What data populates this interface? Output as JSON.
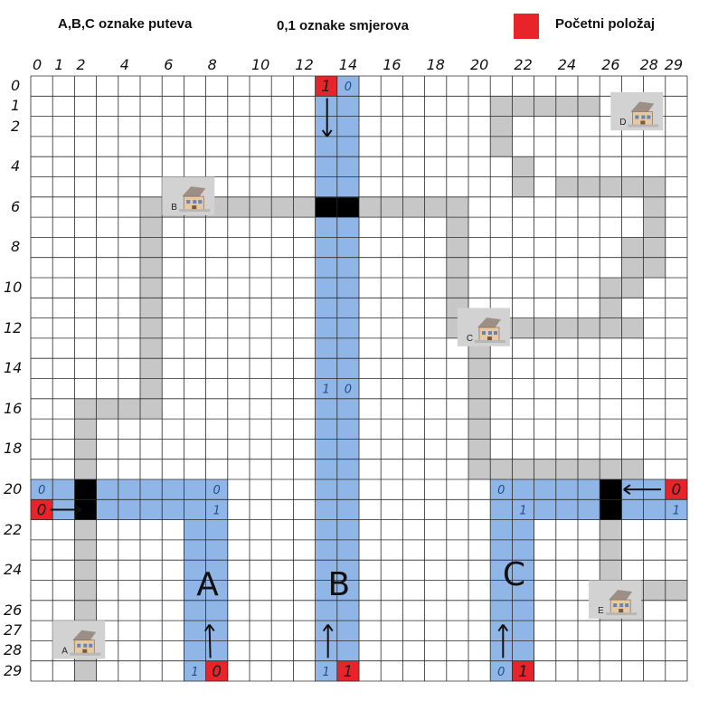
{
  "header": {
    "road_labels_caption": "A,B,C oznake puteva",
    "direction_labels_caption": "0,1  oznake smjerova",
    "start_position_caption": "Početni položaj"
  },
  "colors": {
    "road": "#8fb6e6",
    "path": "#c7c7c7",
    "intersection": "#000000",
    "start": "#e8232a",
    "grid": "#2b2b2b",
    "background": "#ffffff"
  },
  "grid": {
    "cols": 30,
    "rows": 30
  },
  "axes": {
    "x_ticks": [
      "0",
      "1",
      "2",
      "4",
      "6",
      "8",
      "10",
      "12",
      "14",
      "16",
      "18",
      "20",
      "22",
      "24",
      "26",
      "28",
      "29"
    ],
    "y_ticks": [
      "0",
      "1",
      "2",
      "4",
      "6",
      "8",
      "10",
      "12",
      "14",
      "16",
      "18",
      "20",
      "22",
      "24",
      "26",
      "27",
      "28",
      "29"
    ]
  },
  "roads": [
    {
      "label": "A",
      "cells": "horizontal row 20 cols 0-8, vertical cols 7-8 rows 21-29"
    },
    {
      "label": "B",
      "cells": "vertical cols 13-14 rows 0-29"
    },
    {
      "label": "C",
      "cells": "horizontal row 20 cols 21-29, vertical cols 21-22 rows 21-29"
    }
  ],
  "road_name_labels": [
    "A",
    "B",
    "C"
  ],
  "start_cells": [
    {
      "label": "1"
    },
    {
      "label": "0"
    },
    {
      "label": "0"
    },
    {
      "label": "1"
    },
    {
      "label": "1"
    },
    {
      "label": "0"
    }
  ],
  "direction_labels": [
    {
      "label": "0"
    },
    {
      "label": "1"
    },
    {
      "label": "0"
    },
    {
      "label": "0"
    },
    {
      "label": "1"
    },
    {
      "label": "0"
    },
    {
      "label": "1"
    },
    {
      "label": "1"
    },
    {
      "label": "0"
    },
    {
      "label": "1"
    },
    {
      "label": "1"
    },
    {
      "label": "0"
    }
  ],
  "buildings": [
    {
      "label": "A"
    },
    {
      "label": "B"
    },
    {
      "label": "C"
    },
    {
      "label": "D"
    },
    {
      "label": "E"
    }
  ]
}
